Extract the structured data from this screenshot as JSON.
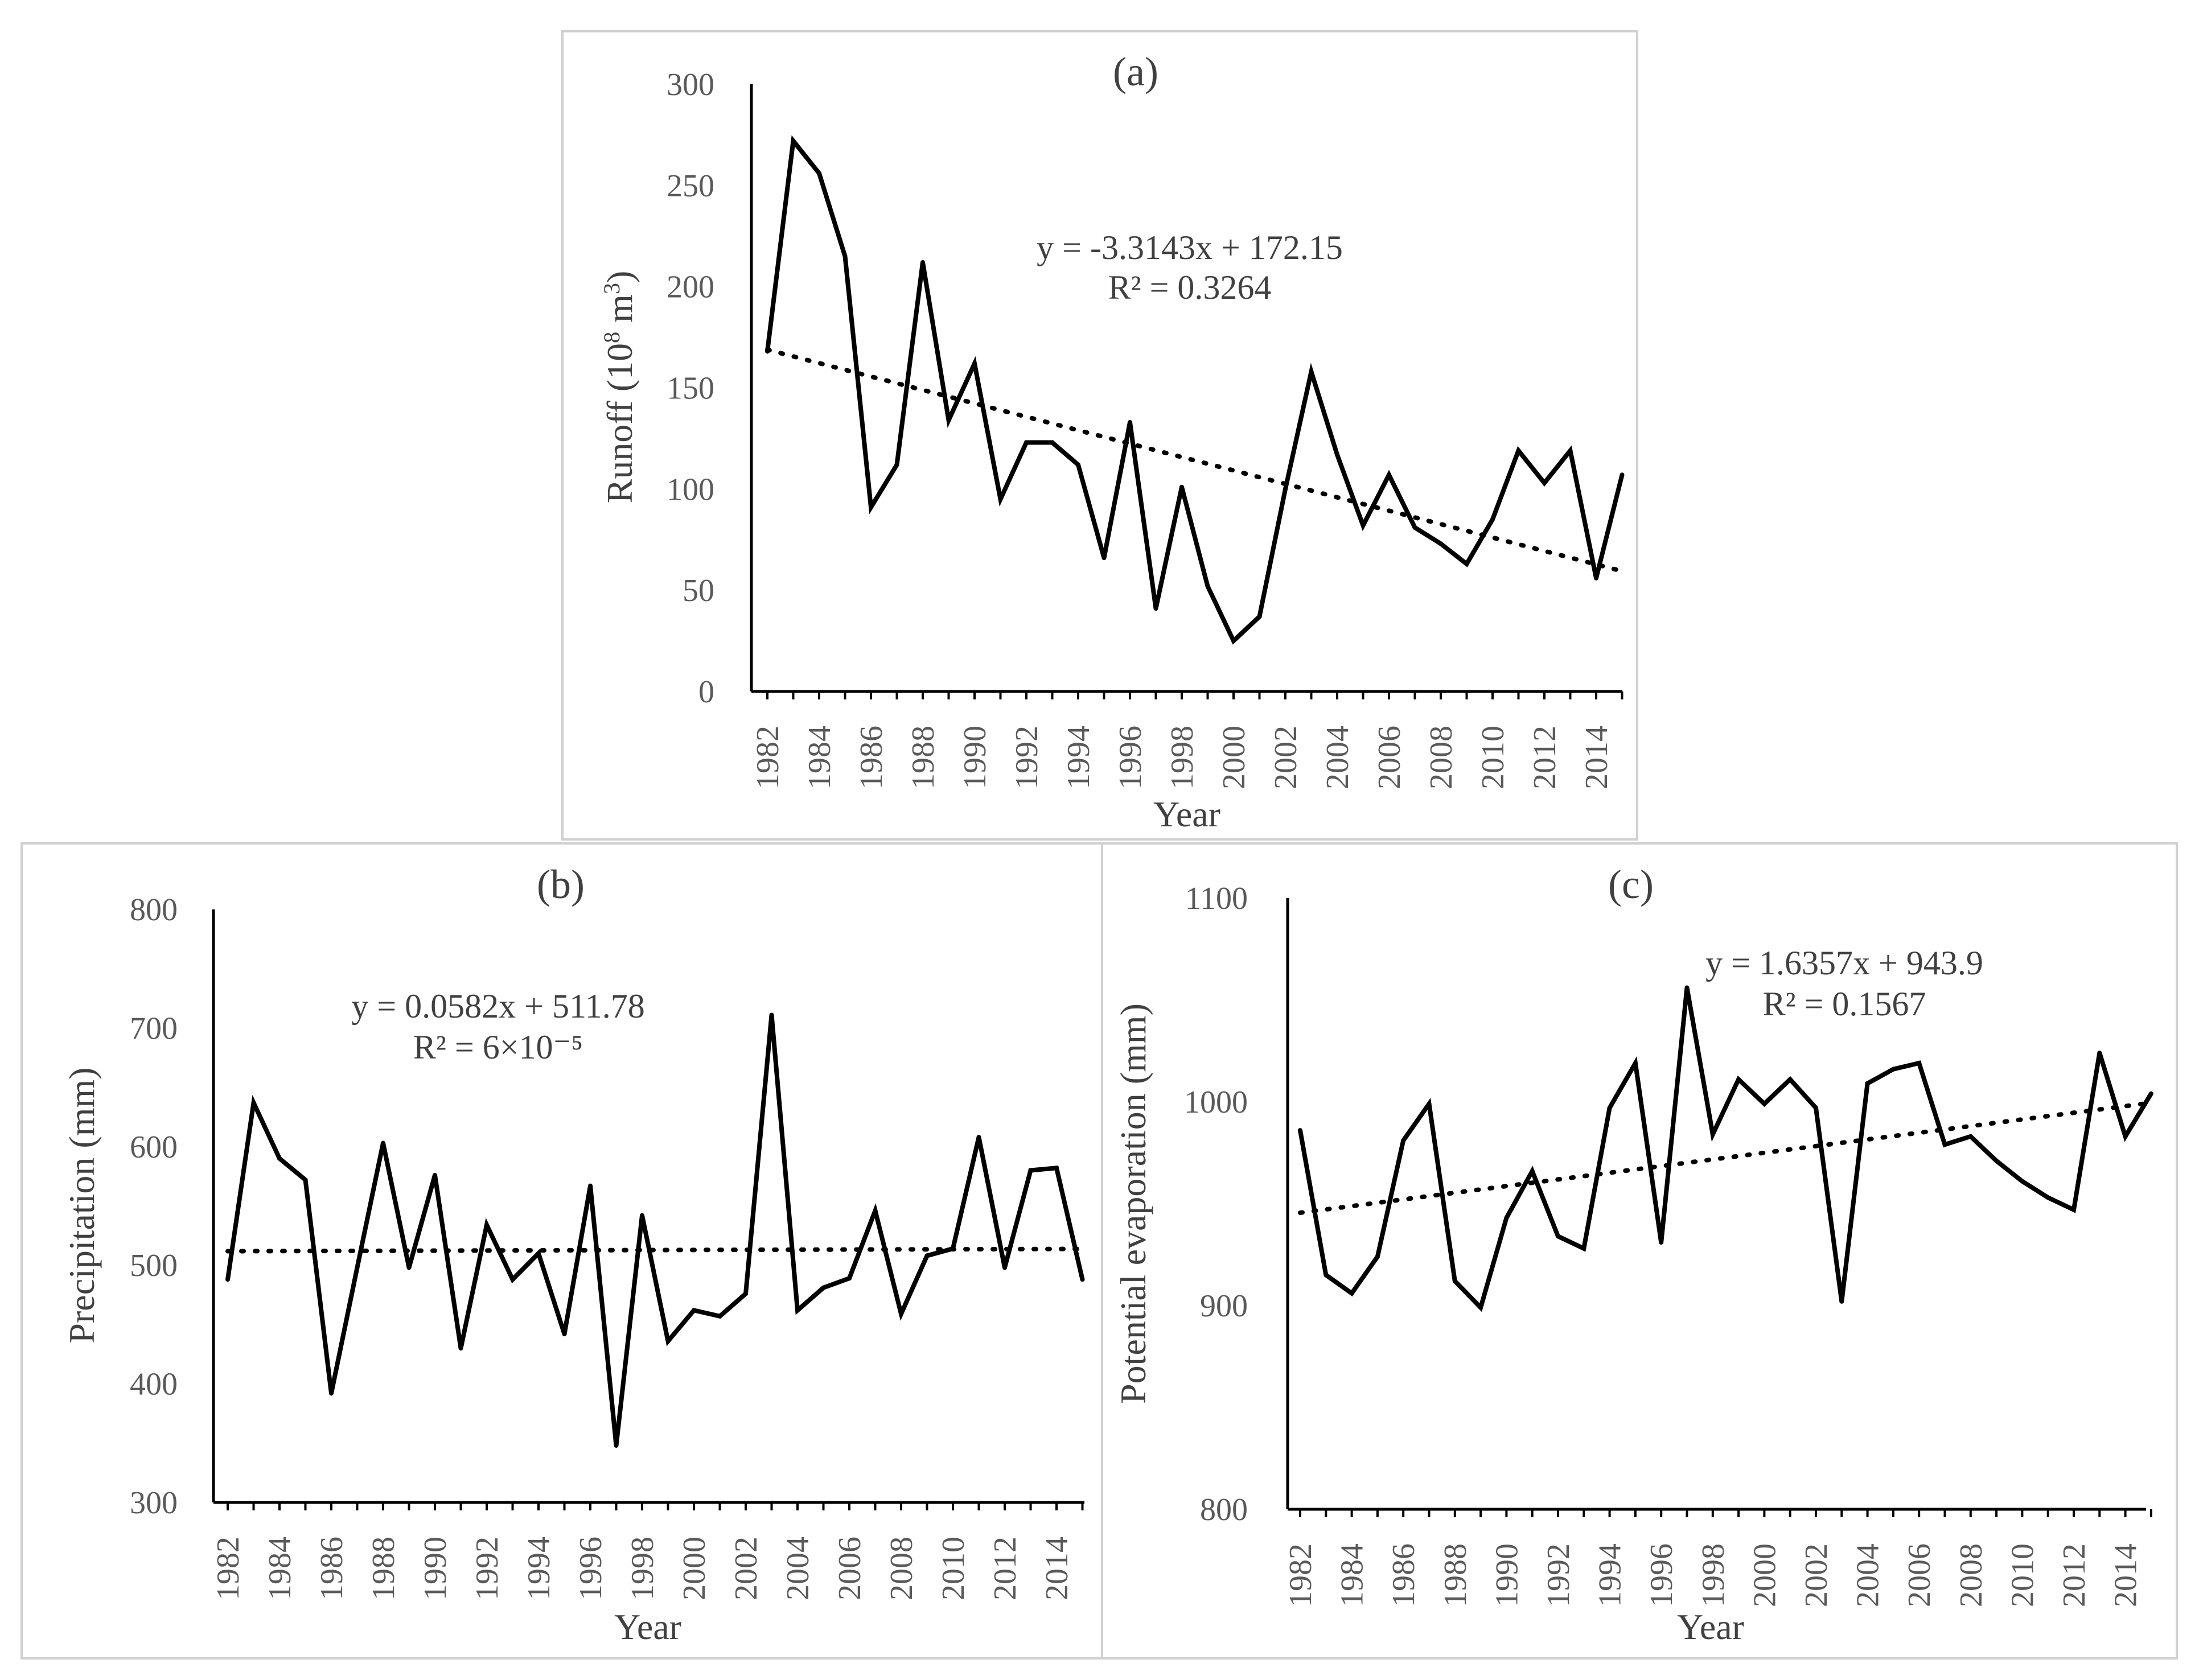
{
  "chart_data": [
    {
      "id": "a",
      "type": "line",
      "title": "(a)",
      "xlabel": "Year",
      "ylabel_main": "Runoff (10",
      "ylabel_sup": "8",
      "ylabel_tail": " m",
      "ylabel_sup2": "3",
      "ylabel_close": ")",
      "ylim": [
        0,
        300
      ],
      "yticks": [
        0,
        50,
        100,
        150,
        200,
        250,
        300
      ],
      "xtick_labels": [
        "1982",
        "1984",
        "1986",
        "1988",
        "1990",
        "1992",
        "1994",
        "1996",
        "1998",
        "2000",
        "2002",
        "2004",
        "2006",
        "2008",
        "2010",
        "2012",
        "2014"
      ],
      "x": [
        1982,
        1983,
        1984,
        1985,
        1986,
        1987,
        1988,
        1989,
        1990,
        1991,
        1992,
        1993,
        1994,
        1995,
        1996,
        1997,
        1998,
        1999,
        2000,
        2001,
        2002,
        2003,
        2004,
        2005,
        2006,
        2007,
        2008,
        2009,
        2010,
        2011,
        2012,
        2013,
        2014,
        2015
      ],
      "series": [
        {
          "name": "Runoff",
          "values": [
            168,
            272,
            256,
            215,
            91,
            112,
            212,
            134,
            162,
            95,
            123,
            123,
            112,
            66,
            133,
            41,
            101,
            52,
            25,
            37,
            100,
            158,
            117,
            82,
            107,
            81,
            73,
            63,
            85,
            119,
            103,
            119,
            56,
            107
          ]
        }
      ],
      "trend": {
        "slope": -3.3143,
        "intercept": 172.15
      },
      "equation": "y = -3.3143x + 172.15",
      "r2": "R² = 0.3264"
    },
    {
      "id": "b",
      "type": "line",
      "title": "(b)",
      "xlabel": "Year",
      "ylabel": "Precipitation (mm)",
      "ylim": [
        300,
        800
      ],
      "yticks": [
        300,
        400,
        500,
        600,
        700,
        800
      ],
      "xtick_labels": [
        "1982",
        "1984",
        "1986",
        "1988",
        "1990",
        "1992",
        "1994",
        "1996",
        "1998",
        "2000",
        "2002",
        "2004",
        "2006",
        "2008",
        "2010",
        "2012",
        "2014"
      ],
      "x": [
        1982,
        1983,
        1984,
        1985,
        1986,
        1987,
        1988,
        1989,
        1990,
        1991,
        1992,
        1993,
        1994,
        1995,
        1996,
        1997,
        1998,
        1999,
        2000,
        2001,
        2002,
        2003,
        2004,
        2005,
        2006,
        2007,
        2008,
        2009,
        2010,
        2011,
        2012,
        2013,
        2014,
        2015
      ],
      "series": [
        {
          "name": "Precipitation",
          "values": [
            488,
            637,
            590,
            572,
            392,
            498,
            603,
            498,
            576,
            430,
            534,
            488,
            510,
            442,
            567,
            348,
            542,
            436,
            462,
            457,
            476,
            711,
            462,
            481,
            489,
            546,
            459,
            508,
            514,
            608,
            498,
            580,
            582,
            488
          ]
        }
      ],
      "trend": {
        "slope": 0.0582,
        "intercept": 511.78
      },
      "equation": "y = 0.0582x + 511.78",
      "r2": "R² = 6×10⁻⁵"
    },
    {
      "id": "c",
      "type": "line",
      "title": "(c)",
      "xlabel": "Year",
      "ylabel": "Potential evaporation (mm)",
      "ylim": [
        800,
        1100
      ],
      "yticks": [
        800,
        900,
        1000,
        1100
      ],
      "xtick_labels": [
        "1982",
        "1984",
        "1986",
        "1988",
        "1990",
        "1992",
        "1994",
        "1996",
        "1998",
        "2000",
        "2002",
        "2004",
        "2006",
        "2008",
        "2010",
        "2012",
        "2014"
      ],
      "x": [
        1982,
        1983,
        1984,
        1985,
        1986,
        1987,
        1988,
        1989,
        1990,
        1991,
        1992,
        1993,
        1994,
        1995,
        1996,
        1997,
        1998,
        1999,
        2000,
        2001,
        2002,
        2003,
        2004,
        2005,
        2006,
        2007,
        2008,
        2009,
        2010,
        2011,
        2012,
        2013,
        2014,
        2015
      ],
      "series": [
        {
          "name": "Potential evaporation",
          "values": [
            986,
            915,
            906,
            924,
            981,
            999,
            912,
            899,
            943,
            966,
            934,
            928,
            997,
            1019,
            931,
            1056,
            984,
            1011,
            999,
            1011,
            997,
            902,
            1009,
            1016,
            1019,
            979,
            983,
            971,
            961,
            953,
            947,
            1024,
            983,
            1004
          ]
        }
      ],
      "trend": {
        "slope": 1.6357,
        "intercept": 943.9
      },
      "equation": "y = 1.6357x + 943.9",
      "r2": "R² = 0.1567"
    }
  ]
}
